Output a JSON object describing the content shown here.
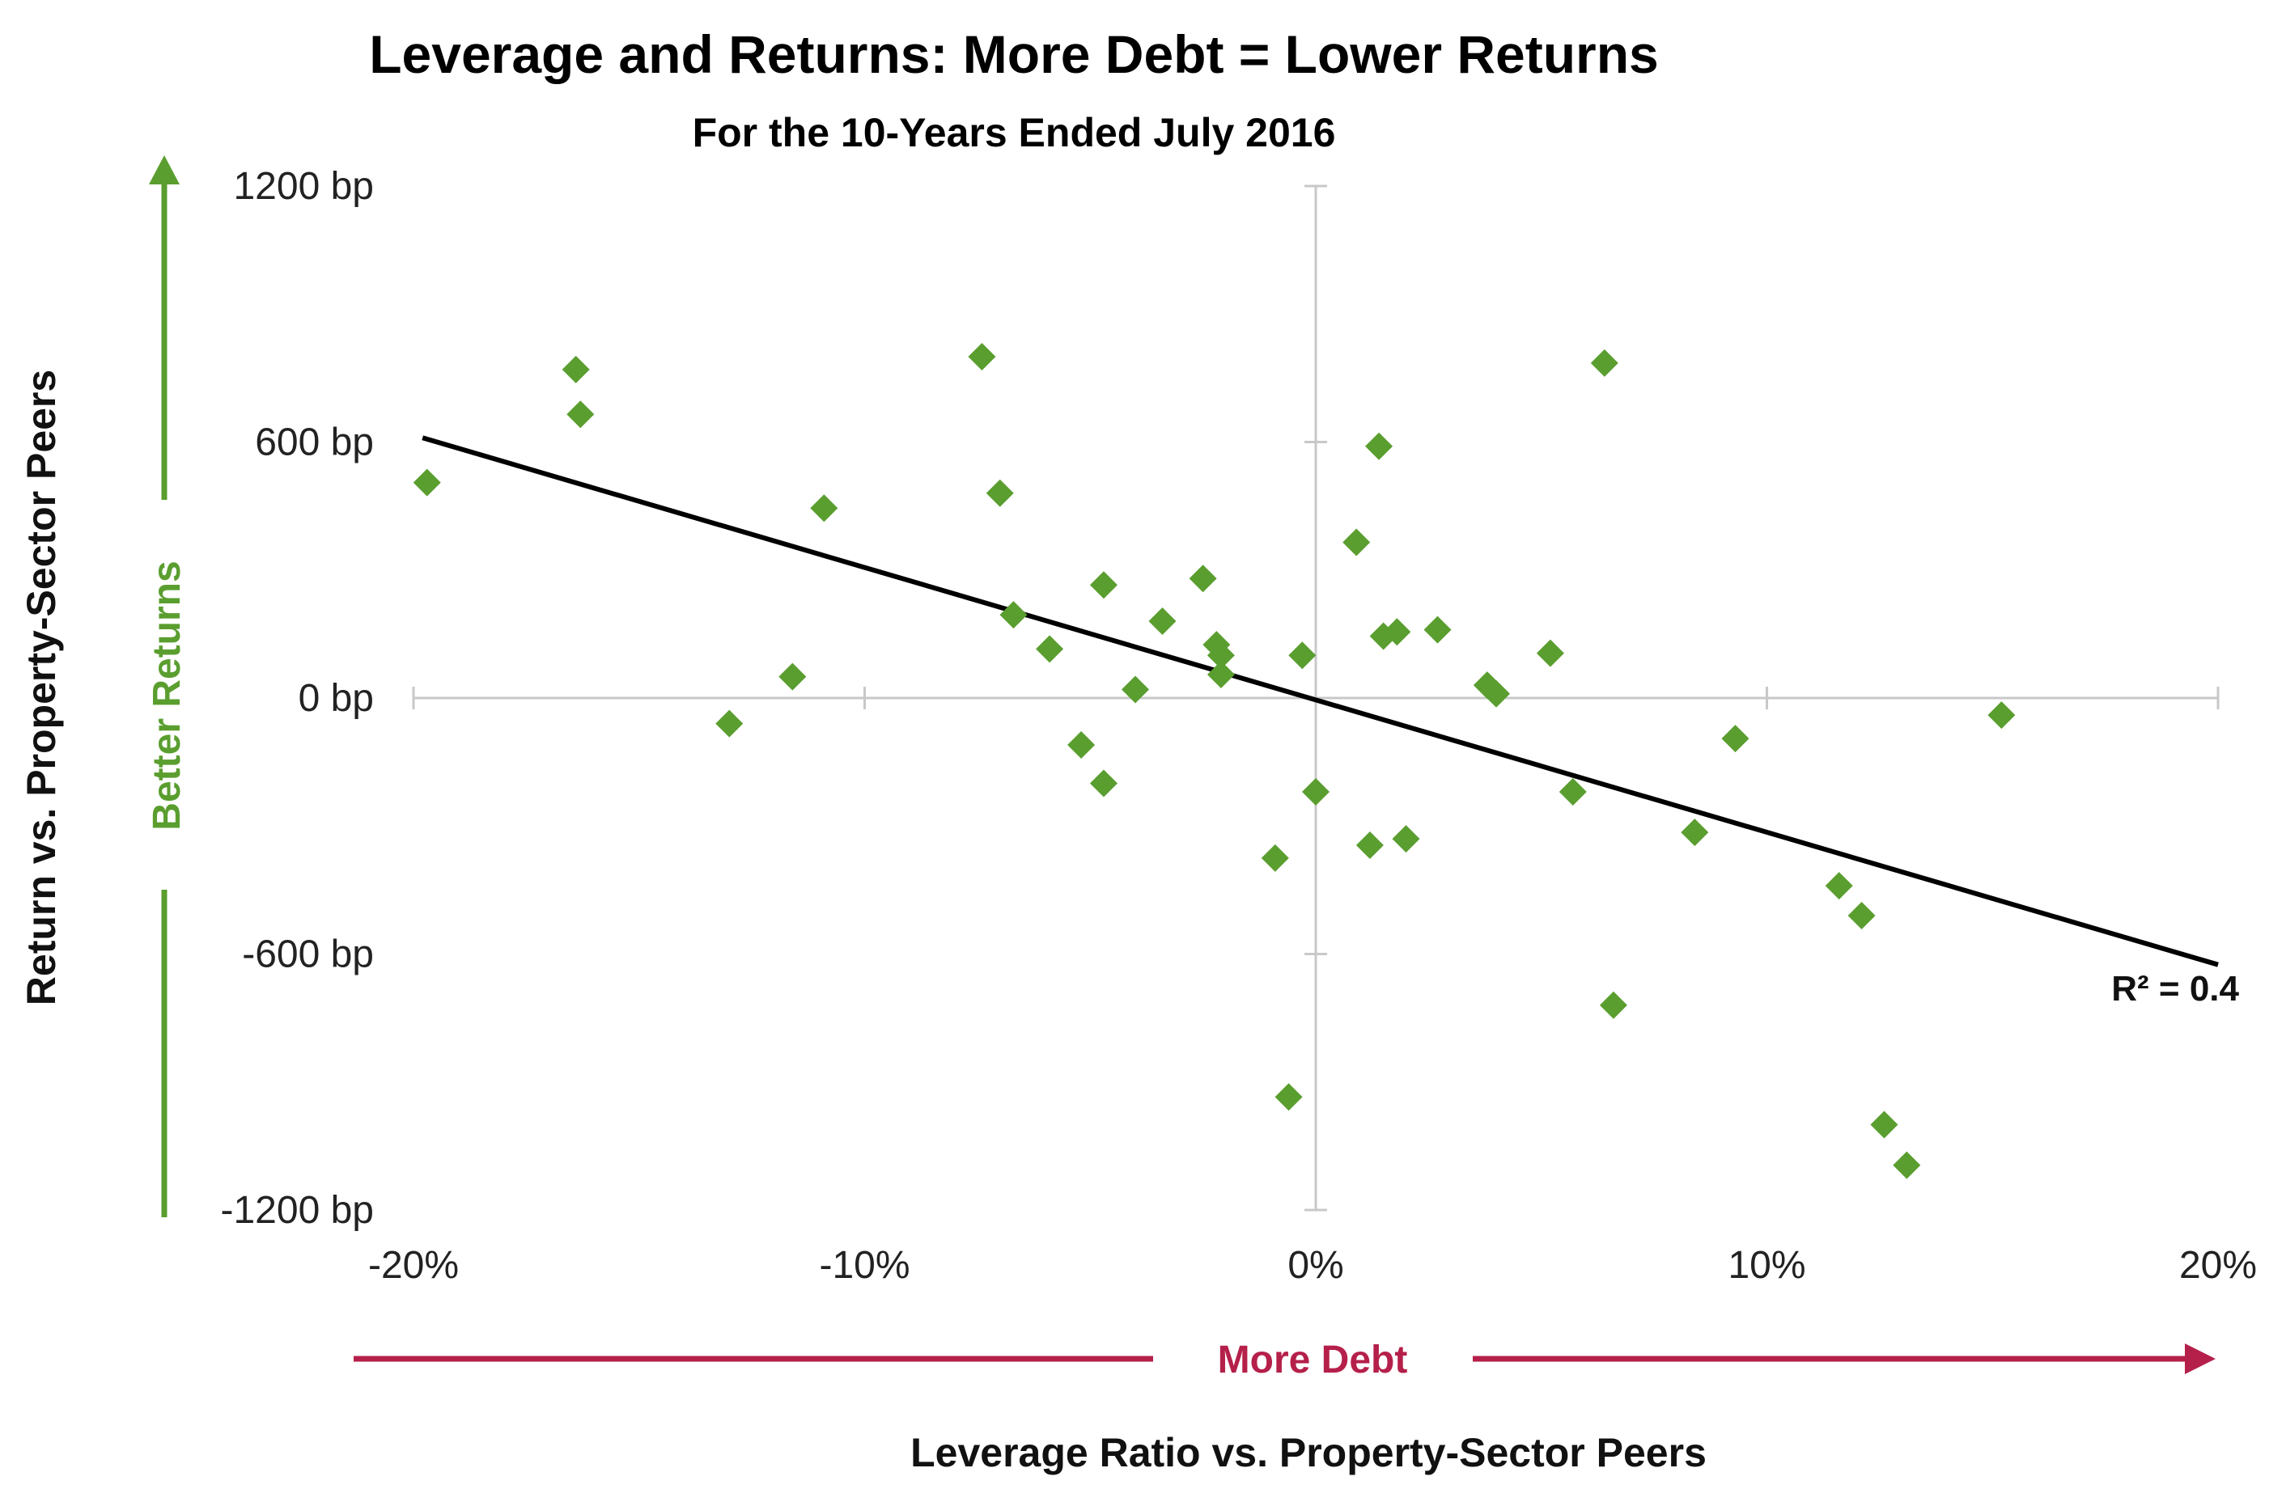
{
  "chart_data": {
    "type": "scatter",
    "title": "Leverage and Returns: More Debt = Lower Returns",
    "subtitle": "For the 10-Years Ended July 2016",
    "xlabel": "Leverage Ratio vs. Property-Sector Peers",
    "ylabel": "Return vs. Property-Sector Peers",
    "xlim": [
      -20,
      20
    ],
    "ylim": [
      -1200,
      1200
    ],
    "x_ticks": [
      -20,
      -10,
      0,
      10,
      20
    ],
    "x_tick_labels": [
      "-20%",
      "-10%",
      "0%",
      "10%",
      "20%"
    ],
    "y_ticks": [
      1200,
      600,
      0,
      -600,
      -1200
    ],
    "y_tick_labels": [
      "1200 bp",
      "600 bp",
      "0 bp",
      "-600 bp",
      "-1200 bp"
    ],
    "grid": false,
    "arrows": {
      "y_label": "Better Returns",
      "x_label": "More Debt"
    },
    "trendline": {
      "x": [
        -19.8,
        20
      ],
      "y": [
        610,
        -625
      ],
      "label": "R² = 0.4"
    },
    "colors": {
      "points": "#5a9e2f",
      "y_arrow": "#5a9e2f",
      "x_arrow": "#b5204a",
      "trendline": "#000000",
      "axis": "#c8c8c8"
    },
    "points": [
      {
        "x": -19.7,
        "y": 505
      },
      {
        "x": -16.4,
        "y": 770
      },
      {
        "x": -16.3,
        "y": 665
      },
      {
        "x": -13.0,
        "y": -60
      },
      {
        "x": -11.6,
        "y": 50
      },
      {
        "x": -10.9,
        "y": 445
      },
      {
        "x": -7.4,
        "y": 800
      },
      {
        "x": -7.0,
        "y": 480
      },
      {
        "x": -6.7,
        "y": 195
      },
      {
        "x": -5.9,
        "y": 115
      },
      {
        "x": -5.2,
        "y": -110
      },
      {
        "x": -4.7,
        "y": 265
      },
      {
        "x": -4.7,
        "y": -200
      },
      {
        "x": -4.0,
        "y": 20
      },
      {
        "x": -3.4,
        "y": 180
      },
      {
        "x": -2.5,
        "y": 280
      },
      {
        "x": -2.2,
        "y": 125
      },
      {
        "x": -2.1,
        "y": 100
      },
      {
        "x": -2.1,
        "y": 55
      },
      {
        "x": -0.9,
        "y": -375
      },
      {
        "x": -0.6,
        "y": -935
      },
      {
        "x": -0.3,
        "y": 100
      },
      {
        "x": 0.0,
        "y": -220
      },
      {
        "x": 0.9,
        "y": 365
      },
      {
        "x": 1.2,
        "y": -345
      },
      {
        "x": 1.4,
        "y": 590
      },
      {
        "x": 1.5,
        "y": 145
      },
      {
        "x": 1.8,
        "y": 155
      },
      {
        "x": 2.0,
        "y": -330
      },
      {
        "x": 2.7,
        "y": 160
      },
      {
        "x": 3.8,
        "y": 30
      },
      {
        "x": 4.0,
        "y": 10
      },
      {
        "x": 5.2,
        "y": 105
      },
      {
        "x": 5.7,
        "y": -220
      },
      {
        "x": 6.4,
        "y": 785
      },
      {
        "x": 6.6,
        "y": -720
      },
      {
        "x": 8.4,
        "y": -315
      },
      {
        "x": 9.3,
        "y": -95
      },
      {
        "x": 11.6,
        "y": -440
      },
      {
        "x": 12.1,
        "y": -510
      },
      {
        "x": 12.6,
        "y": -1000
      },
      {
        "x": 13.1,
        "y": -1095
      },
      {
        "x": 15.2,
        "y": -40
      }
    ]
  }
}
